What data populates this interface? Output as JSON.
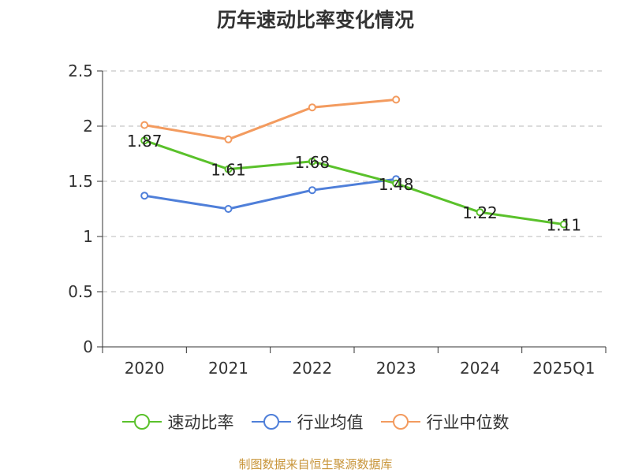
{
  "chart_data": {
    "type": "line",
    "title": "历年速动比率变化情况",
    "categories": [
      "2020",
      "2021",
      "2022",
      "2023",
      "2024",
      "2025Q1"
    ],
    "ylim": [
      0,
      2.5
    ],
    "yticks": [
      "0",
      "0.5",
      "1",
      "1.5",
      "2",
      "2.5"
    ],
    "grid": true,
    "legend_position": "bottom",
    "series": [
      {
        "name": "速动比率",
        "color": "#5ac12b",
        "values": [
          1.87,
          1.61,
          1.68,
          1.48,
          1.22,
          1.11
        ],
        "labels": [
          "1.87",
          "1.61",
          "1.68",
          "1.48",
          "1.22",
          "1.11"
        ]
      },
      {
        "name": "行业均值",
        "color": "#4f7fd9",
        "values": [
          1.37,
          1.25,
          1.42,
          1.52,
          null,
          null
        ]
      },
      {
        "name": "行业中位数",
        "color": "#f39b5f",
        "values": [
          2.01,
          1.88,
          2.17,
          2.24,
          null,
          null
        ]
      }
    ]
  },
  "footer": {
    "source": "制图数据来自恒生聚源数据库"
  }
}
